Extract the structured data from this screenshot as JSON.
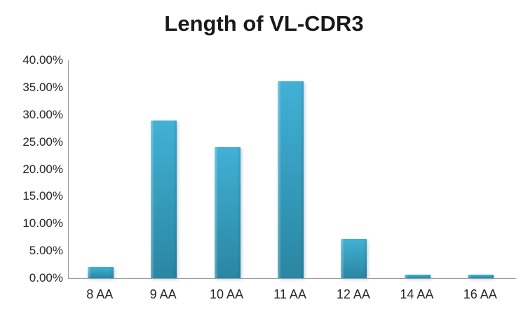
{
  "title": "Length of VL-CDR3",
  "colors": {
    "bar_top": "#41b1d5",
    "bar_bottom": "#2a86a3",
    "axis_line": "#9d9d9d",
    "label_text": "#262626",
    "title_text": "#1a1a1a",
    "background": "#ffffff"
  },
  "chart_data": {
    "type": "bar",
    "title": "Length of VL-CDR3",
    "categories": [
      "8 AA",
      "9 AA",
      "10 AA",
      "11 AA",
      "12 AA",
      "14 AA",
      "16 AA"
    ],
    "values": [
      2.1,
      29.0,
      24.0,
      36.2,
      7.2,
      0.6,
      0.6
    ],
    "value_unit": "%",
    "xlabel": "",
    "ylabel": "",
    "ylim": [
      0,
      40
    ],
    "ytick_interval": 5,
    "ytick_labels": [
      "0.00%",
      "5.00%",
      "10.00%",
      "15.00%",
      "20.00%",
      "25.00%",
      "30.00%",
      "35.00%",
      "40.00%"
    ],
    "grid": false,
    "legend": false
  }
}
